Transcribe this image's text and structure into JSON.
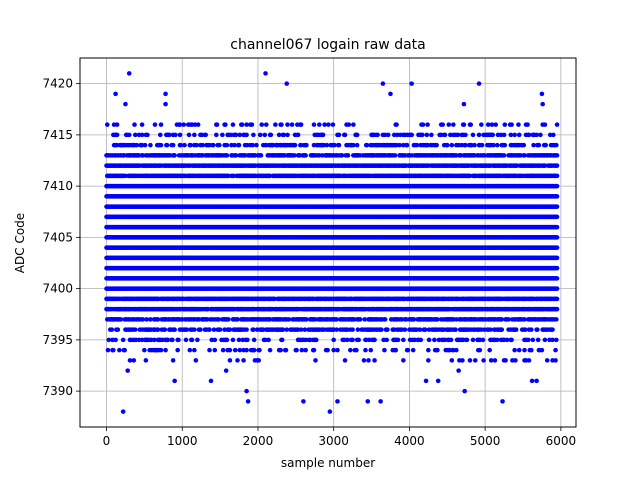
{
  "chart_data": {
    "type": "scatter",
    "title": "channel067 logain raw data",
    "xlabel": "sample number",
    "ylabel": "ADC Code",
    "xlim": [
      -350,
      6200
    ],
    "ylim": [
      7386.5,
      7422.5
    ],
    "xticks": [
      0,
      1000,
      2000,
      3000,
      4000,
      5000,
      6000
    ],
    "yticks": [
      7390,
      7395,
      7400,
      7405,
      7410,
      7415,
      7420
    ],
    "grid": true,
    "marker_color": "#0000ff",
    "series": [
      {
        "x_start": 0,
        "x_end": 5950,
        "band_values": [
          7393,
          7394,
          7395,
          7396,
          7397,
          7398,
          7399,
          7400,
          7401,
          7402,
          7403,
          7404,
          7405,
          7406,
          7407,
          7408,
          7409,
          7410,
          7411,
          7412,
          7413,
          7414,
          7415,
          7416
        ],
        "outliers": [
          [
            220,
            7388
          ],
          [
            300,
            7421
          ],
          [
            120,
            7419
          ],
          [
            250,
            7418
          ],
          [
            780,
            7419
          ],
          [
            780,
            7418
          ],
          [
            900,
            7391
          ],
          [
            2100,
            7421
          ],
          [
            2380,
            7420
          ],
          [
            1850,
            7390
          ],
          [
            1870,
            7389
          ],
          [
            1380,
            7391
          ],
          [
            1580,
            7392
          ],
          [
            2600,
            7389
          ],
          [
            2950,
            7388
          ],
          [
            3050,
            7389
          ],
          [
            3450,
            7389
          ],
          [
            3620,
            7389
          ],
          [
            3650,
            7420
          ],
          [
            3750,
            7419
          ],
          [
            4030,
            7420
          ],
          [
            4220,
            7391
          ],
          [
            4380,
            7391
          ],
          [
            4730,
            7390
          ],
          [
            4920,
            7420
          ],
          [
            5230,
            7389
          ],
          [
            5620,
            7391
          ],
          [
            5680,
            7391
          ],
          [
            5750,
            7419
          ],
          [
            5760,
            7418
          ],
          [
            280,
            7392
          ],
          [
            4650,
            7392
          ],
          [
            4720,
            7418
          ]
        ]
      }
    ]
  }
}
